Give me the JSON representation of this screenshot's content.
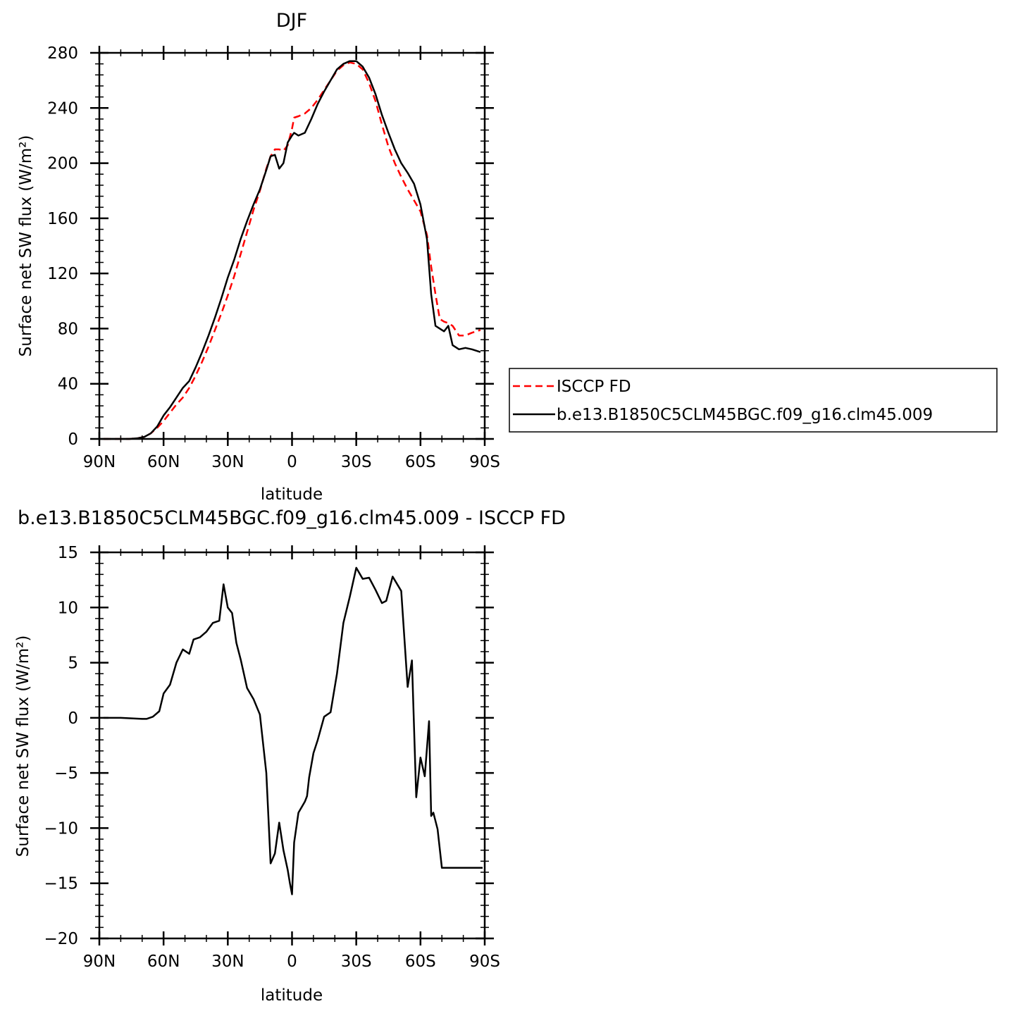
{
  "colors": {
    "obs": "#ff0000",
    "model": "#000000",
    "axes": "#000000"
  },
  "legend": {
    "entries": [
      {
        "label": "ISCCP FD",
        "style": "dashed-red"
      },
      {
        "label": "b.e13.B1850C5CLM45BGC.f09_g16.clm45.009",
        "style": "solid-black"
      }
    ]
  },
  "chart_data": [
    {
      "type": "line",
      "title": "DJF",
      "xlabel": "latitude",
      "ylabel": "Surface net SW flux (W/m²)",
      "xlim": [
        -90,
        90
      ],
      "ylim": [
        0,
        280
      ],
      "x_ticks": [
        -90,
        -60,
        -30,
        0,
        30,
        60,
        90
      ],
      "x_tick_labels": [
        "90N",
        "60N",
        "30N",
        "0",
        "30S",
        "60S",
        "90S"
      ],
      "y_ticks": [
        0,
        40,
        80,
        120,
        160,
        200,
        240,
        280
      ],
      "y_tick_labels": [
        "0",
        "40",
        "80",
        "120",
        "160",
        "200",
        "240",
        "280"
      ],
      "grid": false,
      "legend_position": "right",
      "series": [
        {
          "name": "ISCCP FD",
          "style": "dashed",
          "color": "#ff0000",
          "x": [
            -88,
            -80,
            -76,
            -72,
            -69,
            -66,
            -63,
            -60,
            -57,
            -54,
            -51,
            -48,
            -45,
            -42,
            -39,
            -36,
            -33,
            -30,
            -27,
            -24,
            -21,
            -18,
            -15,
            -12,
            -10,
            -8,
            -6,
            -4,
            -2,
            0,
            1,
            3,
            6,
            9,
            12,
            15,
            18,
            21,
            24,
            27,
            30,
            33,
            36,
            39,
            42,
            45,
            48,
            51,
            54,
            57,
            60,
            63,
            65,
            67,
            69,
            71,
            73,
            75,
            78,
            81,
            84,
            88
          ],
          "y": [
            0,
            0,
            0,
            0.5,
            1.5,
            4,
            8,
            13,
            19,
            25,
            30,
            37,
            46,
            56,
            67,
            79,
            91,
            104,
            118,
            134,
            150,
            166,
            180,
            196,
            205,
            210,
            210,
            209,
            213,
            225,
            233,
            234,
            236,
            240,
            246,
            253,
            260,
            267,
            271,
            273,
            272,
            268,
            258,
            245,
            228,
            212,
            200,
            190,
            181,
            173,
            165,
            148,
            125,
            105,
            87,
            85,
            84,
            82,
            75,
            75,
            77,
            79
          ]
        },
        {
          "name": "b.e13.B1850C5CLM45BGC.f09_g16.clm45.009",
          "style": "solid",
          "color": "#000000",
          "x": [
            -88,
            -80,
            -76,
            -72,
            -69,
            -66,
            -63,
            -60,
            -57,
            -54,
            -51,
            -48,
            -45,
            -42,
            -39,
            -36,
            -33,
            -30,
            -27,
            -24,
            -21,
            -18,
            -15,
            -12,
            -10,
            -8,
            -6,
            -4,
            -2,
            0,
            1,
            3,
            6,
            9,
            12,
            15,
            18,
            21,
            24,
            27,
            30,
            33,
            36,
            39,
            42,
            45,
            48,
            51,
            54,
            57,
            60,
            63,
            65,
            67,
            69,
            71,
            73,
            75,
            78,
            81,
            84,
            88
          ],
          "y": [
            0,
            0,
            0,
            0.5,
            1.5,
            4,
            9,
            17,
            23,
            30,
            37,
            42,
            52,
            63,
            75,
            88,
            102,
            117,
            130,
            145,
            158,
            170,
            181,
            195,
            205,
            206,
            196,
            200,
            215,
            220,
            222,
            220,
            222,
            232,
            243,
            252,
            260,
            268,
            272,
            274,
            274,
            270,
            262,
            250,
            235,
            222,
            210,
            200,
            193,
            185,
            170,
            145,
            105,
            82,
            80,
            78,
            82,
            68,
            65,
            66,
            65,
            63
          ]
        }
      ]
    },
    {
      "type": "line",
      "title": "b.e13.B1850C5CLM45BGC.f09_g16.clm45.009 - ISCCP FD",
      "xlabel": "latitude",
      "ylabel": "Surface net SW flux (W/m²)",
      "xlim": [
        -90,
        90
      ],
      "ylim": [
        -20,
        15
      ],
      "x_ticks": [
        -90,
        -60,
        -30,
        0,
        30,
        60,
        90
      ],
      "x_tick_labels": [
        "90N",
        "60N",
        "30N",
        "0",
        "30S",
        "60S",
        "90S"
      ],
      "y_ticks": [
        -20,
        -15,
        -10,
        -5,
        0,
        5,
        10,
        15
      ],
      "y_tick_labels": [
        "−20",
        "−15",
        "−10",
        "−5",
        "0",
        "5",
        "10",
        "15"
      ],
      "grid": false,
      "series": [
        {
          "style": "solid",
          "color": "#000000",
          "x": [
            -88,
            -80,
            -75,
            -70,
            -68,
            -65,
            -62,
            -60,
            -57,
            -54,
            -51,
            -48,
            -46,
            -43,
            -40,
            -37,
            -34,
            -32,
            -30,
            -28,
            -26,
            -24,
            -21,
            -18,
            -15,
            -12,
            -10,
            -8,
            -6,
            -4,
            -2,
            -1,
            0,
            1,
            3,
            6,
            7,
            8,
            10,
            12,
            15,
            18,
            21,
            24,
            27,
            30,
            33,
            36,
            39,
            42,
            44,
            47,
            51,
            54,
            56,
            58,
            60,
            62,
            64,
            65,
            66,
            68,
            70,
            72,
            74,
            76,
            77,
            79,
            81,
            83,
            86,
            89
          ],
          "y": [
            0,
            0,
            -0.05,
            -0.1,
            -0.1,
            0.1,
            0.6,
            2.2,
            3,
            5,
            6.2,
            5.8,
            7.1,
            7.3,
            7.8,
            8.6,
            8.8,
            12.1,
            10,
            9.5,
            6.8,
            5.3,
            2.7,
            1.7,
            0.3,
            -5,
            -13.2,
            -12.3,
            -9.5,
            -12,
            -13.8,
            -15,
            -16,
            -11.3,
            -8.6,
            -7.6,
            -7.1,
            -5.4,
            -3.2,
            -2,
            0.1,
            0.5,
            4,
            8.6,
            11,
            13.6,
            12.6,
            12.7,
            11.6,
            10.4,
            10.6,
            12.8,
            11.5,
            2.8,
            5.2,
            -7.2,
            -3.6,
            -5.3,
            -0.3,
            -8.9,
            -8.6,
            -10.1,
            -13.6,
            -13.6,
            -13.6,
            -13.6,
            -13.6,
            -13.6,
            -13.6,
            -13.6,
            -13.6,
            -13.6
          ]
        }
      ]
    }
  ]
}
